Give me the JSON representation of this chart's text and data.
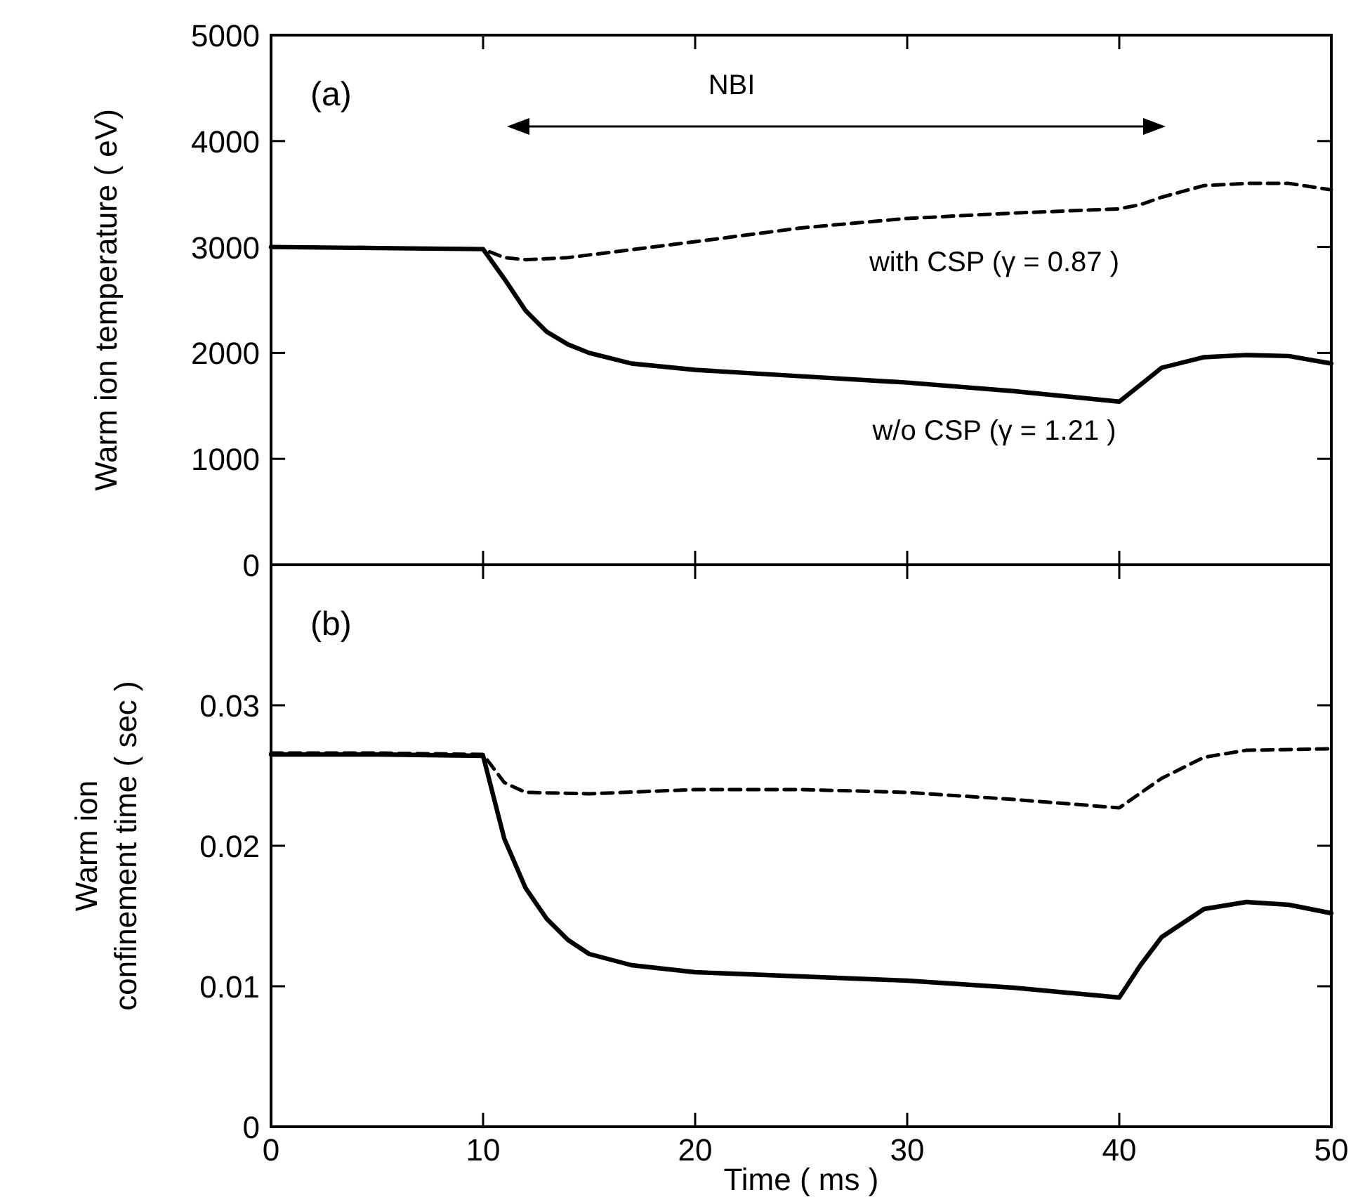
{
  "chart_data": [
    {
      "type": "line",
      "ylabel": "Warm ion temperature ( eV)",
      "xlim": [
        0,
        50
      ],
      "ylim": [
        0,
        5000
      ],
      "xticks": [
        0,
        10,
        20,
        30,
        40,
        50
      ],
      "yticks": [
        0,
        1000,
        2000,
        3000,
        4000,
        5000
      ],
      "tick_labels": "y",
      "grid": false,
      "annotations": [
        "(a)",
        "NBI",
        "with CSP (γ = 0.87 )",
        "w/o CSP (γ = 1.21 )"
      ],
      "series": [
        {
          "color": "#000000",
          "line_style": "dashed",
          "x": [
            0,
            5,
            10,
            11,
            12,
            14,
            16,
            20,
            25,
            30,
            35,
            40,
            41,
            42,
            44,
            46,
            48,
            50
          ],
          "values": [
            3000,
            2990,
            2980,
            2900,
            2880,
            2900,
            2950,
            3050,
            3180,
            3270,
            3320,
            3360,
            3400,
            3470,
            3580,
            3600,
            3600,
            3540
          ]
        },
        {
          "color": "#000000",
          "line_style": "solid",
          "x": [
            0,
            5,
            10,
            11,
            12,
            13,
            14,
            15,
            17,
            20,
            25,
            30,
            35,
            40,
            41,
            42,
            44,
            46,
            48,
            50
          ],
          "values": [
            3000,
            2990,
            2980,
            2700,
            2400,
            2200,
            2080,
            2000,
            1900,
            1840,
            1780,
            1720,
            1640,
            1540,
            1700,
            1860,
            1960,
            1980,
            1970,
            1900
          ]
        }
      ]
    },
    {
      "type": "line",
      "xlabel": "Time ( ms )",
      "ylabel": "Warm ion confinement time ( sec )",
      "xlim": [
        0,
        50
      ],
      "ylim": [
        0,
        0.04
      ],
      "xticks": [
        0,
        10,
        20,
        30,
        40,
        50
      ],
      "yticks": [
        0,
        0.01,
        0.02,
        0.03
      ],
      "grid": false,
      "annotations": [
        "(b)"
      ],
      "series": [
        {
          "color": "#000000",
          "line_style": "dashed",
          "x": [
            0,
            5,
            10,
            11,
            12,
            15,
            20,
            25,
            30,
            35,
            40,
            42,
            44,
            46,
            50
          ],
          "values": [
            0.0266,
            0.0266,
            0.0265,
            0.0245,
            0.0238,
            0.0237,
            0.024,
            0.024,
            0.0238,
            0.0233,
            0.0227,
            0.0248,
            0.0263,
            0.0268,
            0.0269
          ]
        },
        {
          "color": "#000000",
          "line_style": "solid",
          "x": [
            0,
            5,
            10,
            11,
            12,
            13,
            14,
            15,
            17,
            20,
            25,
            30,
            35,
            40,
            41,
            42,
            44,
            46,
            48,
            50
          ],
          "values": [
            0.0265,
            0.0265,
            0.0264,
            0.0205,
            0.017,
            0.0148,
            0.0133,
            0.0123,
            0.0115,
            0.011,
            0.0107,
            0.0104,
            0.0099,
            0.0092,
            0.0115,
            0.0135,
            0.0155,
            0.016,
            0.0158,
            0.0152
          ]
        }
      ]
    }
  ]
}
